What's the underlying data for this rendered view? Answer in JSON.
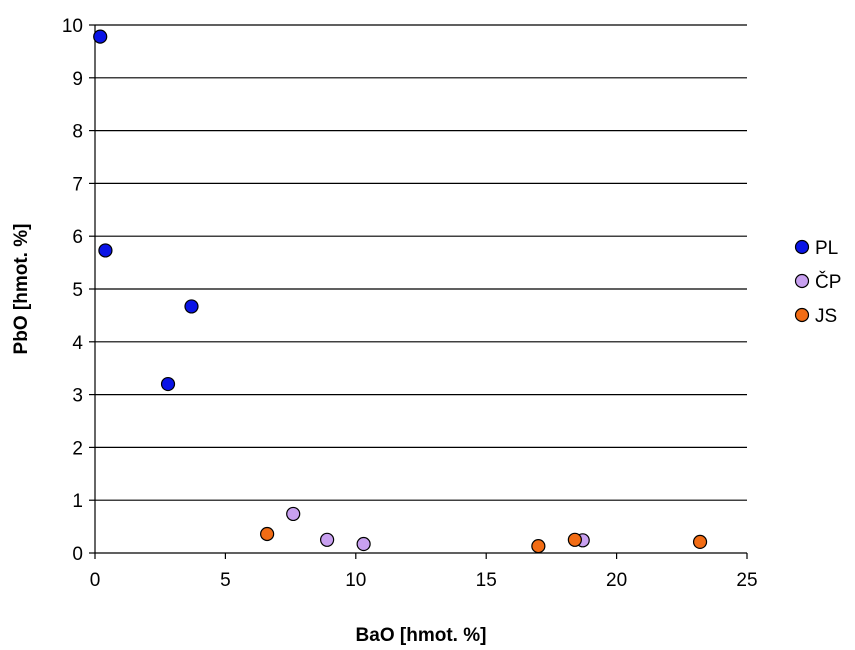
{
  "chart_data": {
    "type": "scatter",
    "title": "",
    "xlabel": "BaO [hmot. %]",
    "ylabel": "PbO [hmot. %]",
    "xlim": [
      0,
      25
    ],
    "ylim": [
      0,
      10
    ],
    "xticks": [
      0,
      5,
      10,
      15,
      20,
      25
    ],
    "yticks": [
      0,
      1,
      2,
      3,
      4,
      5,
      6,
      7,
      8,
      9,
      10
    ],
    "grid": "horizontal",
    "legend_position": "right",
    "series": [
      {
        "name": "PL",
        "color": "#0a14e6",
        "points": [
          {
            "x": 0.2,
            "y": 9.78
          },
          {
            "x": 0.4,
            "y": 5.73
          },
          {
            "x": 3.7,
            "y": 4.67
          },
          {
            "x": 2.8,
            "y": 3.2
          }
        ]
      },
      {
        "name": "ČP",
        "color": "#c8a0f0",
        "points": [
          {
            "x": 7.6,
            "y": 0.74
          },
          {
            "x": 8.9,
            "y": 0.25
          },
          {
            "x": 10.3,
            "y": 0.17
          },
          {
            "x": 18.7,
            "y": 0.24
          }
        ]
      },
      {
        "name": "JS",
        "color": "#f26c14",
        "points": [
          {
            "x": 6.6,
            "y": 0.36
          },
          {
            "x": 17.0,
            "y": 0.13
          },
          {
            "x": 18.4,
            "y": 0.25
          },
          {
            "x": 23.2,
            "y": 0.21
          }
        ]
      }
    ]
  }
}
